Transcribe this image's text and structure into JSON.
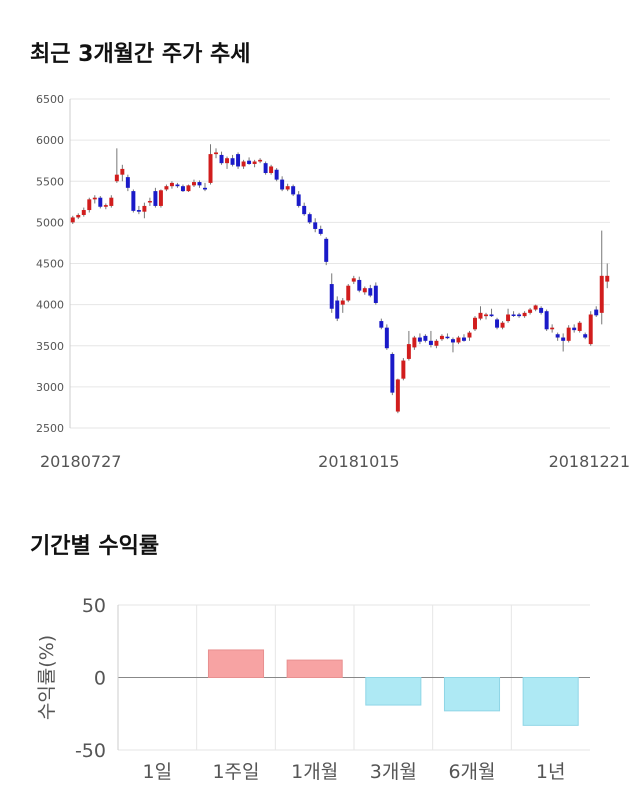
{
  "page": {
    "section1_title": "최근 3개월간 주가 추세",
    "section2_title": "기간별 수익률"
  },
  "colors": {
    "up": "#d11d1d",
    "down": "#1a1ac8",
    "positive_bar": "#f7a3a3",
    "negative_bar": "#aee9f4",
    "grid": "#e6e6e6"
  },
  "chart_data": [
    {
      "type": "candlestick",
      "title": "최근 3개월간 주가 추세",
      "ylim": [
        2500,
        6500
      ],
      "y_ticks": [
        2500,
        3000,
        3500,
        4000,
        4500,
        5000,
        5500,
        6000,
        6500
      ],
      "x_tick_labels": [
        "20180727",
        "20181015",
        "20181221"
      ],
      "grid": "horizontal",
      "candles": [
        {
          "o": 5000,
          "h": 5080,
          "l": 4980,
          "c": 5060
        },
        {
          "o": 5060,
          "h": 5110,
          "l": 5040,
          "c": 5090
        },
        {
          "o": 5090,
          "h": 5180,
          "l": 5070,
          "c": 5150
        },
        {
          "o": 5150,
          "h": 5300,
          "l": 5120,
          "c": 5280
        },
        {
          "o": 5280,
          "h": 5330,
          "l": 5230,
          "c": 5300
        },
        {
          "o": 5300,
          "h": 5320,
          "l": 5170,
          "c": 5190
        },
        {
          "o": 5190,
          "h": 5230,
          "l": 5160,
          "c": 5210
        },
        {
          "o": 5200,
          "h": 5330,
          "l": 5180,
          "c": 5300
        },
        {
          "o": 5500,
          "h": 5900,
          "l": 5480,
          "c": 5580
        },
        {
          "o": 5580,
          "h": 5700,
          "l": 5500,
          "c": 5650
        },
        {
          "o": 5550,
          "h": 5580,
          "l": 5380,
          "c": 5420
        },
        {
          "o": 5380,
          "h": 5400,
          "l": 5120,
          "c": 5140
        },
        {
          "o": 5150,
          "h": 5200,
          "l": 5100,
          "c": 5130
        },
        {
          "o": 5130,
          "h": 5240,
          "l": 5050,
          "c": 5200
        },
        {
          "o": 5250,
          "h": 5300,
          "l": 5200,
          "c": 5260
        },
        {
          "o": 5380,
          "h": 5420,
          "l": 5180,
          "c": 5200
        },
        {
          "o": 5200,
          "h": 5400,
          "l": 5180,
          "c": 5390
        },
        {
          "o": 5400,
          "h": 5460,
          "l": 5380,
          "c": 5440
        },
        {
          "o": 5440,
          "h": 5500,
          "l": 5410,
          "c": 5480
        },
        {
          "o": 5460,
          "h": 5480,
          "l": 5420,
          "c": 5440
        },
        {
          "o": 5440,
          "h": 5460,
          "l": 5370,
          "c": 5380
        },
        {
          "o": 5380,
          "h": 5460,
          "l": 5370,
          "c": 5450
        },
        {
          "o": 5450,
          "h": 5520,
          "l": 5430,
          "c": 5490
        },
        {
          "o": 5490,
          "h": 5510,
          "l": 5420,
          "c": 5450
        },
        {
          "o": 5420,
          "h": 5480,
          "l": 5380,
          "c": 5400
        },
        {
          "o": 5480,
          "h": 5950,
          "l": 5460,
          "c": 5830
        },
        {
          "o": 5830,
          "h": 5900,
          "l": 5780,
          "c": 5850
        },
        {
          "o": 5820,
          "h": 5860,
          "l": 5700,
          "c": 5720
        },
        {
          "o": 5720,
          "h": 5800,
          "l": 5650,
          "c": 5780
        },
        {
          "o": 5780,
          "h": 5820,
          "l": 5680,
          "c": 5700
        },
        {
          "o": 5830,
          "h": 5850,
          "l": 5650,
          "c": 5680
        },
        {
          "o": 5680,
          "h": 5760,
          "l": 5650,
          "c": 5740
        },
        {
          "o": 5750,
          "h": 5790,
          "l": 5700,
          "c": 5710
        },
        {
          "o": 5710,
          "h": 5760,
          "l": 5670,
          "c": 5740
        },
        {
          "o": 5740,
          "h": 5780,
          "l": 5720,
          "c": 5760
        },
        {
          "o": 5720,
          "h": 5740,
          "l": 5580,
          "c": 5600
        },
        {
          "o": 5600,
          "h": 5700,
          "l": 5580,
          "c": 5680
        },
        {
          "o": 5640,
          "h": 5660,
          "l": 5500,
          "c": 5520
        },
        {
          "o": 5520,
          "h": 5560,
          "l": 5380,
          "c": 5400
        },
        {
          "o": 5400,
          "h": 5470,
          "l": 5380,
          "c": 5440
        },
        {
          "o": 5440,
          "h": 5460,
          "l": 5320,
          "c": 5340
        },
        {
          "o": 5340,
          "h": 5380,
          "l": 5180,
          "c": 5200
        },
        {
          "o": 5200,
          "h": 5240,
          "l": 5080,
          "c": 5100
        },
        {
          "o": 5100,
          "h": 5120,
          "l": 4980,
          "c": 5000
        },
        {
          "o": 5000,
          "h": 5050,
          "l": 4880,
          "c": 4920
        },
        {
          "o": 4920,
          "h": 4960,
          "l": 4840,
          "c": 4860
        },
        {
          "o": 4800,
          "h": 4820,
          "l": 4480,
          "c": 4520
        },
        {
          "o": 4250,
          "h": 4380,
          "l": 3900,
          "c": 3950
        },
        {
          "o": 4050,
          "h": 4100,
          "l": 3800,
          "c": 3830
        },
        {
          "o": 4000,
          "h": 4080,
          "l": 3900,
          "c": 4050
        },
        {
          "o": 4050,
          "h": 4250,
          "l": 4030,
          "c": 4230
        },
        {
          "o": 4280,
          "h": 4350,
          "l": 4250,
          "c": 4320
        },
        {
          "o": 4300,
          "h": 4340,
          "l": 4150,
          "c": 4170
        },
        {
          "o": 4150,
          "h": 4220,
          "l": 4120,
          "c": 4200
        },
        {
          "o": 4200,
          "h": 4240,
          "l": 4090,
          "c": 4110
        },
        {
          "o": 4230,
          "h": 4270,
          "l": 4000,
          "c": 4020
        },
        {
          "o": 3800,
          "h": 3830,
          "l": 3700,
          "c": 3720
        },
        {
          "o": 3720,
          "h": 3760,
          "l": 3450,
          "c": 3470
        },
        {
          "o": 3400,
          "h": 3420,
          "l": 2900,
          "c": 2930
        },
        {
          "o": 2700,
          "h": 3100,
          "l": 2680,
          "c": 3090
        },
        {
          "o": 3100,
          "h": 3350,
          "l": 3080,
          "c": 3320
        },
        {
          "o": 3340,
          "h": 3680,
          "l": 3320,
          "c": 3520
        },
        {
          "o": 3480,
          "h": 3620,
          "l": 3450,
          "c": 3600
        },
        {
          "o": 3600,
          "h": 3650,
          "l": 3520,
          "c": 3550
        },
        {
          "o": 3620,
          "h": 3640,
          "l": 3540,
          "c": 3560
        },
        {
          "o": 3560,
          "h": 3680,
          "l": 3480,
          "c": 3510
        },
        {
          "o": 3500,
          "h": 3580,
          "l": 3470,
          "c": 3560
        },
        {
          "o": 3580,
          "h": 3640,
          "l": 3560,
          "c": 3620
        },
        {
          "o": 3610,
          "h": 3650,
          "l": 3580,
          "c": 3600
        },
        {
          "o": 3580,
          "h": 3600,
          "l": 3420,
          "c": 3540
        },
        {
          "o": 3540,
          "h": 3620,
          "l": 3520,
          "c": 3600
        },
        {
          "o": 3600,
          "h": 3640,
          "l": 3550,
          "c": 3560
        },
        {
          "o": 3600,
          "h": 3680,
          "l": 3560,
          "c": 3660
        },
        {
          "o": 3700,
          "h": 3860,
          "l": 3680,
          "c": 3840
        },
        {
          "o": 3830,
          "h": 3980,
          "l": 3810,
          "c": 3900
        },
        {
          "o": 3860,
          "h": 3900,
          "l": 3820,
          "c": 3880
        },
        {
          "o": 3880,
          "h": 3950,
          "l": 3850,
          "c": 3860
        },
        {
          "o": 3820,
          "h": 3840,
          "l": 3700,
          "c": 3720
        },
        {
          "o": 3720,
          "h": 3800,
          "l": 3700,
          "c": 3780
        },
        {
          "o": 3800,
          "h": 3950,
          "l": 3780,
          "c": 3880
        },
        {
          "o": 3880,
          "h": 3920,
          "l": 3850,
          "c": 3870
        },
        {
          "o": 3880,
          "h": 3900,
          "l": 3840,
          "c": 3860
        },
        {
          "o": 3860,
          "h": 3920,
          "l": 3840,
          "c": 3900
        },
        {
          "o": 3900,
          "h": 3960,
          "l": 3880,
          "c": 3940
        },
        {
          "o": 3940,
          "h": 4000,
          "l": 3920,
          "c": 3990
        },
        {
          "o": 3960,
          "h": 3980,
          "l": 3880,
          "c": 3900
        },
        {
          "o": 3920,
          "h": 3940,
          "l": 3680,
          "c": 3700
        },
        {
          "o": 3700,
          "h": 3760,
          "l": 3660,
          "c": 3720
        },
        {
          "o": 3640,
          "h": 3660,
          "l": 3560,
          "c": 3600
        },
        {
          "o": 3600,
          "h": 3650,
          "l": 3430,
          "c": 3560
        },
        {
          "o": 3560,
          "h": 3750,
          "l": 3540,
          "c": 3720
        },
        {
          "o": 3720,
          "h": 3760,
          "l": 3660,
          "c": 3690
        },
        {
          "o": 3680,
          "h": 3800,
          "l": 3660,
          "c": 3780
        },
        {
          "o": 3640,
          "h": 3660,
          "l": 3580,
          "c": 3600
        },
        {
          "o": 3520,
          "h": 3920,
          "l": 3500,
          "c": 3880
        },
        {
          "o": 3940,
          "h": 3980,
          "l": 3850,
          "c": 3870
        },
        {
          "o": 3900,
          "h": 4900,
          "l": 3760,
          "c": 4350
        },
        {
          "o": 4280,
          "h": 4500,
          "l": 4200,
          "c": 4350
        }
      ]
    },
    {
      "type": "bar",
      "title": "기간별 수익률",
      "ylabel": "수익률(%)",
      "ylim": [
        -50,
        50
      ],
      "y_ticks": [
        50,
        0,
        -50
      ],
      "categories": [
        "1일",
        "1주일",
        "1개월",
        "3개월",
        "6개월",
        "1년"
      ],
      "values": [
        0,
        19,
        12,
        -19,
        -23,
        -33
      ]
    }
  ]
}
